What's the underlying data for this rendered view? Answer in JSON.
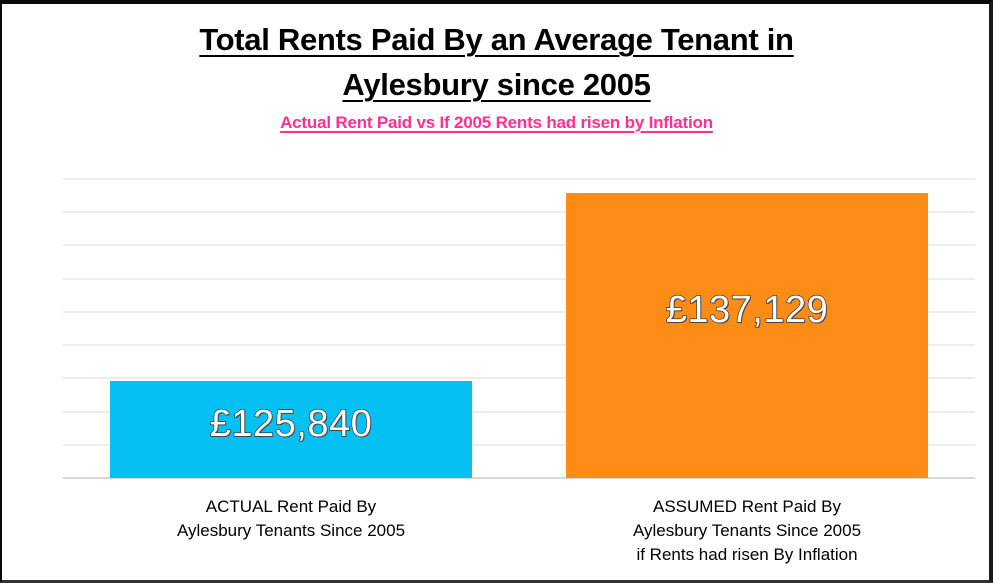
{
  "chart_data": {
    "type": "bar",
    "title": "Total Rents Paid By an Average Tenant in Aylesbury since 2005",
    "title_lines": [
      "Total Rents Paid By an Average Tenant in",
      "Aylesbury since 2005"
    ],
    "subtitle": "Actual Rent Paid vs If 2005 Rents had risen by Inflation",
    "categories": [
      "ACTUAL  Rent Paid By Aylesbury Tenants Since 2005",
      "ASSUMED Rent Paid By Aylesbury Tenants Since 2005 if Rents had risen By Inflation"
    ],
    "category_lines": [
      [
        "ACTUAL  Rent Paid By",
        "Aylesbury Tenants Since 2005"
      ],
      [
        "ASSUMED Rent Paid By",
        "Aylesbury Tenants Since 2005",
        "if Rents had risen By Inflation"
      ]
    ],
    "values": [
      125840,
      137129
    ],
    "data_labels": [
      "£125,840",
      "£137,129"
    ],
    "colors": [
      "#05c0f3",
      "#fd8c17"
    ],
    "xlabel": "",
    "ylabel": "",
    "ylim": [
      120000,
      138000
    ],
    "y_gridline_step": 2000,
    "y_tick_labels_visible": false,
    "grid": true,
    "legend": "none"
  },
  "style": {
    "title_color": "#000000",
    "subtitle_color": "#ff2f92",
    "grid_color": "#ededed"
  }
}
